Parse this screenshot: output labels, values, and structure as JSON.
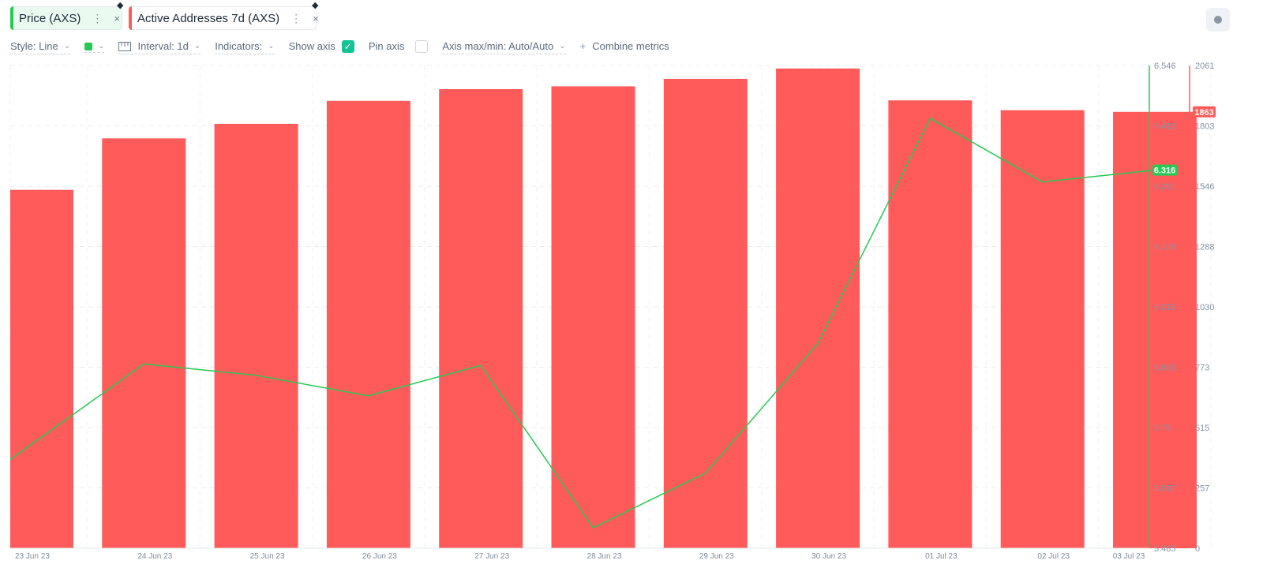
{
  "metrics": [
    {
      "label": "Price (AXS)",
      "color": "#26c953"
    },
    {
      "label": "Active Addresses 7d (AXS)",
      "color": "#ff5b5b"
    }
  ],
  "toolbar": {
    "style": "Style: Line",
    "interval": "Interval: 1d",
    "indicators": "Indicators:",
    "show_axis": "Show axis",
    "pin_axis": "Pin axis",
    "axis_maxmin": "Axis max/min: Auto/Auto",
    "combine": "Combine metrics",
    "combine_icon": "+"
  },
  "icons": {
    "more": "⋮",
    "close": "×",
    "chevron": "⌄",
    "check": "✓"
  },
  "chart_data": {
    "type": "bar+line",
    "categories": [
      "23 Jun 23",
      "24 Jun 23",
      "25 Jun 23",
      "26 Jun 23",
      "27 Jun 23",
      "28 Jun 23",
      "29 Jun 23",
      "30 Jun 23",
      "01 Jul 23",
      "02 Jul 23",
      "03 Jul 23"
    ],
    "series": [
      {
        "name": "Active Addresses 7d (AXS)",
        "kind": "bar",
        "axis": "right",
        "color": "#ff5b5b",
        "values": [
          1530,
          1750,
          1812,
          1910,
          1960,
          1972,
          2004,
          2048,
          1912,
          1870,
          1863
        ]
      },
      {
        "name": "Price (AXS)",
        "kind": "line",
        "axis": "left",
        "color": "#26c953",
        "values": [
          5.68,
          5.89,
          5.865,
          5.82,
          5.887,
          5.53,
          5.65,
          5.935,
          6.43,
          6.29,
          6.316
        ]
      }
    ],
    "price_axis": {
      "ticks": [
        "6.546",
        "6.413",
        "6.281",
        "6.148",
        "6.015",
        "5.883",
        "5.75",
        "5.617",
        "5.485"
      ],
      "min": 5.485,
      "max": 6.546,
      "last_label": "6.316"
    },
    "addresses_axis": {
      "ticks": [
        "2061",
        "1803",
        "1546",
        "1288",
        "1030",
        "773",
        "515",
        "257",
        "0"
      ],
      "min": 0,
      "max": 2061,
      "last_label": "1863"
    },
    "grid": true
  }
}
